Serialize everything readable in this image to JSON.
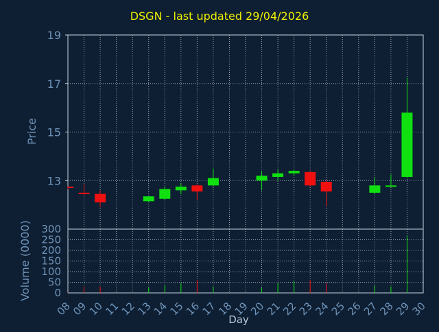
{
  "chart_data": {
    "type": "candlestick",
    "title": "DSGN - last updated 29/04/2026",
    "xlabel": "Day",
    "x_ticks": [
      "08",
      "09",
      "10",
      "11",
      "12",
      "13",
      "14",
      "15",
      "16",
      "17",
      "18",
      "19",
      "20",
      "21",
      "22",
      "23",
      "24",
      "25",
      "26",
      "27",
      "28",
      "29",
      "30"
    ],
    "price_panel": {
      "ylabel": "Price",
      "ylim": [
        11,
        19
      ],
      "y_ticks": [
        "19",
        "17",
        "15",
        "13"
      ],
      "y_tick_values": [
        19,
        17,
        15,
        13
      ],
      "candles": [
        {
          "day": 8,
          "open": 12.75,
          "high": 12.75,
          "low": 12.65,
          "close": 12.7
        },
        {
          "day": 9,
          "open": 12.5,
          "high": 12.85,
          "low": 12.4,
          "close": 12.45
        },
        {
          "day": 10,
          "open": 12.45,
          "high": 12.6,
          "low": 11.9,
          "close": 12.1
        },
        {
          "day": 13,
          "open": 12.15,
          "high": 12.35,
          "low": 12.1,
          "close": 12.35
        },
        {
          "day": 14,
          "open": 12.25,
          "high": 12.75,
          "low": 12.2,
          "close": 12.65
        },
        {
          "day": 15,
          "open": 12.6,
          "high": 12.9,
          "low": 12.45,
          "close": 12.75
        },
        {
          "day": 16,
          "open": 12.8,
          "high": 12.85,
          "low": 12.2,
          "close": 12.55
        },
        {
          "day": 17,
          "open": 12.8,
          "high": 13.5,
          "low": 12.75,
          "close": 13.1
        },
        {
          "day": 20,
          "open": 13.0,
          "high": 13.4,
          "low": 12.6,
          "close": 13.2
        },
        {
          "day": 21,
          "open": 13.15,
          "high": 13.45,
          "low": 13.0,
          "close": 13.3
        },
        {
          "day": 22,
          "open": 13.3,
          "high": 13.45,
          "low": 13.2,
          "close": 13.4
        },
        {
          "day": 23,
          "open": 13.35,
          "high": 13.4,
          "low": 12.75,
          "close": 12.8
        },
        {
          "day": 24,
          "open": 12.95,
          "high": 13.0,
          "low": 11.95,
          "close": 12.55
        },
        {
          "day": 27,
          "open": 12.5,
          "high": 13.15,
          "low": 12.45,
          "close": 12.8
        },
        {
          "day": 28,
          "open": 12.75,
          "high": 13.25,
          "low": 12.75,
          "close": 12.8
        },
        {
          "day": 29,
          "open": 13.15,
          "high": 17.25,
          "low": 13.1,
          "close": 15.8
        }
      ]
    },
    "volume_panel": {
      "ylabel": "Volume (0000)",
      "ylim": [
        0,
        300
      ],
      "y_ticks": [
        "300",
        "250",
        "200",
        "150",
        "100",
        "50",
        "0"
      ],
      "y_tick_values": [
        300,
        250,
        200,
        150,
        100,
        50,
        0
      ],
      "bars": [
        {
          "day": 8,
          "value": 2,
          "direction": "down"
        },
        {
          "day": 9,
          "value": 30,
          "direction": "down"
        },
        {
          "day": 10,
          "value": 30,
          "direction": "down"
        },
        {
          "day": 13,
          "value": 25,
          "direction": "up"
        },
        {
          "day": 14,
          "value": 35,
          "direction": "up"
        },
        {
          "day": 15,
          "value": 45,
          "direction": "up"
        },
        {
          "day": 16,
          "value": 60,
          "direction": "down"
        },
        {
          "day": 17,
          "value": 30,
          "direction": "up"
        },
        {
          "day": 20,
          "value": 25,
          "direction": "up"
        },
        {
          "day": 21,
          "value": 45,
          "direction": "up"
        },
        {
          "day": 22,
          "value": 55,
          "direction": "up"
        },
        {
          "day": 23,
          "value": 60,
          "direction": "down"
        },
        {
          "day": 24,
          "value": 45,
          "direction": "down"
        },
        {
          "day": 27,
          "value": 35,
          "direction": "up"
        },
        {
          "day": 28,
          "value": 30,
          "direction": "up"
        },
        {
          "day": 29,
          "value": 270,
          "direction": "up"
        }
      ]
    },
    "x_range": [
      8,
      30
    ],
    "grid": true,
    "colors": {
      "background": "#0e1f33",
      "title": "#f0f000",
      "axis_text": "#6f93b8",
      "label_text": "#b8c8d8",
      "grid": "#c8d4e0",
      "frame": "#c8d4e0",
      "up": "#10e010",
      "down": "#f01010"
    }
  }
}
